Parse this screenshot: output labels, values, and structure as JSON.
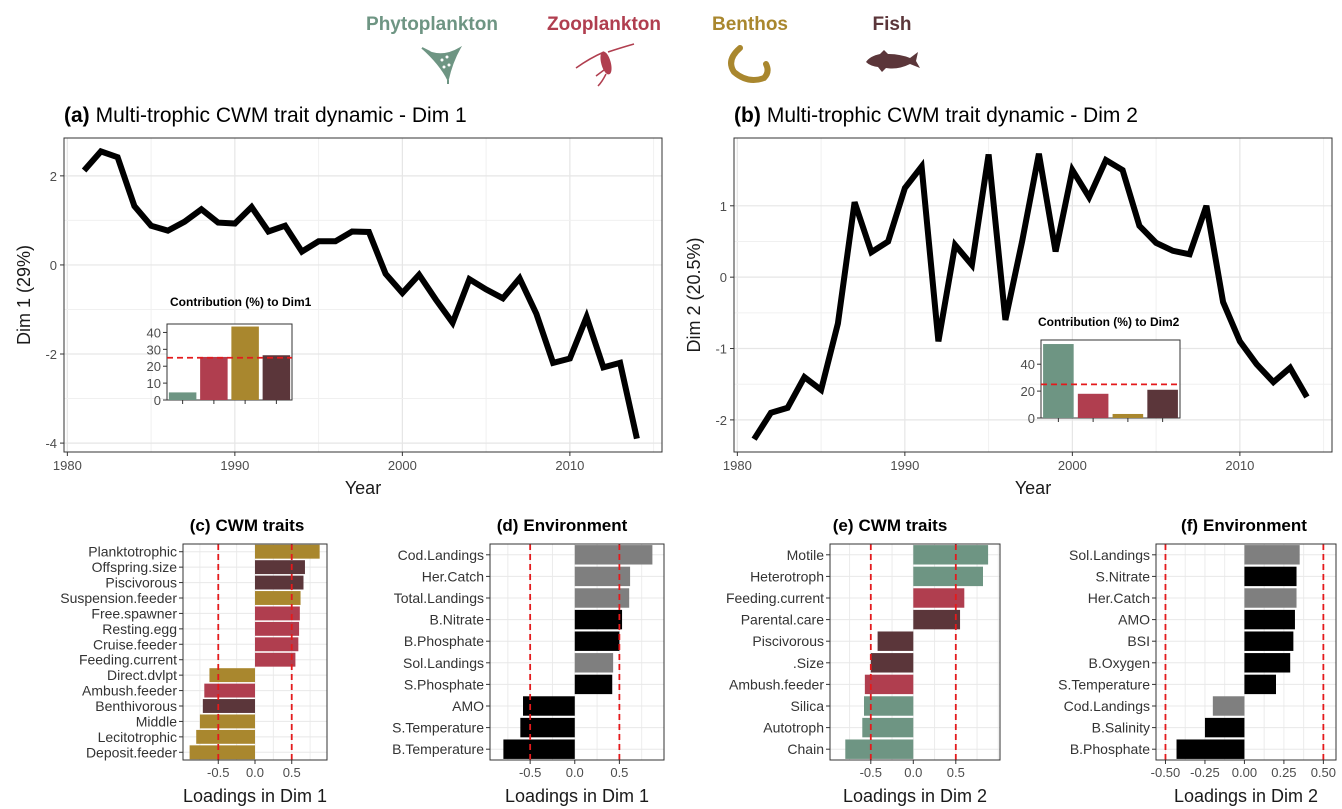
{
  "legend": {
    "groups": [
      {
        "name": "Phytoplankton",
        "color": "#6e9583",
        "icon": "phytoplankton-icon"
      },
      {
        "name": "Zooplankton",
        "color": "#b03e4f",
        "icon": "zooplankton-icon"
      },
      {
        "name": "Benthos",
        "color": "#a9872e",
        "icon": "benthos-icon"
      },
      {
        "name": "Fish",
        "color": "#5b363a",
        "icon": "fish-icon"
      }
    ]
  },
  "chart_data": [
    {
      "type": "line",
      "panel": "a",
      "title_prefix": "(a)",
      "title": "Multi-trophic CWM trait dynamic - Dim 1",
      "xlabel": "Year",
      "ylabel": "Dim 1 (29%)",
      "xlim": [
        1979.8,
        2015.5
      ],
      "ylim": [
        -4.2,
        2.85
      ],
      "xticks": [
        1980,
        1990,
        2000,
        2010
      ],
      "yticks": [
        2,
        0,
        -2,
        -4
      ],
      "grid": true,
      "x": [
        1981,
        1982,
        1983,
        1984,
        1985,
        1986,
        1987,
        1988,
        1989,
        1990,
        1991,
        1992,
        1993,
        1994,
        1995,
        1996,
        1997,
        1998,
        1999,
        2000,
        2001,
        2002,
        2003,
        2004,
        2005,
        2006,
        2007,
        2008,
        2009,
        2010,
        2011,
        2012,
        2013,
        2014
      ],
      "y": [
        2.12,
        2.55,
        2.42,
        1.32,
        0.88,
        0.77,
        0.97,
        1.25,
        0.95,
        0.93,
        1.3,
        0.75,
        0.88,
        0.3,
        0.53,
        0.53,
        0.75,
        0.74,
        -0.2,
        -0.63,
        -0.22,
        -0.78,
        -1.3,
        -0.32,
        -0.55,
        -0.75,
        -0.3,
        -1.1,
        -2.2,
        -2.1,
        -1.17,
        -2.3,
        -2.2,
        -3.9
      ],
      "inset": {
        "type": "bar",
        "title": "Contribution (%) to Dim1",
        "categories": [
          "Phytoplankton",
          "Zooplankton",
          "Benthos",
          "Fish"
        ],
        "values": [
          4.5,
          25.5,
          43.5,
          26.5
        ],
        "ylim": [
          0,
          45
        ],
        "yticks": [
          0,
          10,
          20,
          30,
          40
        ],
        "reference_line": 25,
        "reference_color": "#e41a1c"
      }
    },
    {
      "type": "line",
      "panel": "b",
      "title_prefix": "(b)",
      "title": "Multi-trophic CWM trait dynamic - Dim 2",
      "xlabel": "Year",
      "ylabel": "Dim 2 (20.5%)",
      "xlim": [
        1979.8,
        2015.5
      ],
      "ylim": [
        -2.45,
        1.95
      ],
      "xticks": [
        1980,
        1990,
        2000,
        2010
      ],
      "yticks": [
        1,
        0,
        -1,
        -2
      ],
      "grid": true,
      "x": [
        1981,
        1982,
        1983,
        1984,
        1985,
        1986,
        1987,
        1988,
        1989,
        1990,
        1991,
        1992,
        1993,
        1994,
        1995,
        1996,
        1997,
        1998,
        1999,
        2000,
        2001,
        2002,
        2003,
        2004,
        2005,
        2006,
        2007,
        2008,
        2009,
        2010,
        2011,
        2012,
        2013,
        2014
      ],
      "y": [
        -2.27,
        -1.9,
        -1.83,
        -1.4,
        -1.58,
        -0.65,
        1.05,
        0.35,
        0.5,
        1.25,
        1.55,
        -0.9,
        0.45,
        0.17,
        1.72,
        -0.6,
        0.5,
        1.73,
        0.36,
        1.5,
        1.12,
        1.64,
        1.5,
        0.72,
        0.48,
        0.37,
        0.32,
        1.0,
        -0.35,
        -0.9,
        -1.22,
        -1.47,
        -1.27,
        -1.68
      ],
      "inset": {
        "type": "bar",
        "title": "Contribution (%) to Dim2",
        "categories": [
          "Phytoplankton",
          "Zooplankton",
          "Benthos",
          "Fish"
        ],
        "values": [
          55,
          18,
          3,
          21
        ],
        "ylim": [
          0,
          58
        ],
        "yticks": [
          0,
          20,
          40
        ],
        "reference_line": 25,
        "reference_color": "#e41a1c"
      }
    },
    {
      "type": "bar",
      "orientation": "horizontal",
      "panel": "c",
      "title_prefix": "(c)",
      "title": "CWM traits",
      "xlabel": "Loadings in Dim 1",
      "xlim": [
        -0.98,
        0.98
      ],
      "xticks": [
        -0.5,
        0.0,
        0.5
      ],
      "xtick_labels": [
        "-0.5",
        "0.0",
        "0.5"
      ],
      "reference_lines": [
        -0.5,
        0.5
      ],
      "categories": [
        "Planktotrophic",
        "Offspring.size",
        "Piscivorous",
        "Suspension.feeder",
        "Free.spawner",
        "Resting.egg",
        "Cruise.feeder",
        "Feeding.current",
        "Direct.dvlpt",
        "Ambush.feeder",
        "Benthivorous",
        "Middle",
        "Lecitotrophic",
        "Deposit.feeder"
      ],
      "values": [
        0.88,
        0.68,
        0.66,
        0.62,
        0.61,
        0.6,
        0.59,
        0.55,
        -0.62,
        -0.69,
        -0.71,
        -0.75,
        -0.8,
        -0.89
      ],
      "colors": [
        "#a9872e",
        "#5b363a",
        "#5b363a",
        "#a9872e",
        "#b03e4f",
        "#b03e4f",
        "#b03e4f",
        "#b03e4f",
        "#a9872e",
        "#b03e4f",
        "#5b363a",
        "#a9872e",
        "#a9872e",
        "#a9872e"
      ]
    },
    {
      "type": "bar",
      "orientation": "horizontal",
      "panel": "d",
      "title_prefix": "(d)",
      "title": "Environment",
      "xlabel": "Loadings in Dim 1",
      "xlim": [
        -0.95,
        1.0
      ],
      "xticks": [
        -0.5,
        0.0,
        0.5
      ],
      "xtick_labels": [
        "-0.5",
        "0.0",
        "0.5"
      ],
      "reference_lines": [
        -0.5,
        0.5
      ],
      "categories": [
        "Cod.Landings",
        "Her.Catch",
        "Total.Landings",
        "B.Nitrate",
        "B.Phosphate",
        "Sol.Landings",
        "S.Phosphate",
        "AMO",
        "S.Temperature",
        "B.Temperature"
      ],
      "values": [
        0.87,
        0.62,
        0.61,
        0.53,
        0.5,
        0.43,
        0.42,
        -0.58,
        -0.61,
        -0.8
      ],
      "colors": [
        "#7f7f7f",
        "#7f7f7f",
        "#7f7f7f",
        "#000000",
        "#000000",
        "#7f7f7f",
        "#000000",
        "#000000",
        "#000000",
        "#000000"
      ]
    },
    {
      "type": "bar",
      "orientation": "horizontal",
      "panel": "e",
      "title_prefix": "(e)",
      "title": "CWM traits",
      "xlabel": "Loadings in Dim 2",
      "xlim": [
        -0.98,
        1.02
      ],
      "xticks": [
        -0.5,
        0.0,
        0.5
      ],
      "xtick_labels": [
        "-0.5",
        "0.0",
        "0.5"
      ],
      "reference_lines": [
        -0.5,
        0.5
      ],
      "categories": [
        "Motile",
        "Heterotroph",
        "Feeding.current",
        "Parental.care",
        "Piscivorous",
        ".Size",
        "Ambush.feeder",
        "Silica",
        "Autotroph",
        "Chain"
      ],
      "values": [
        0.88,
        0.82,
        0.6,
        0.55,
        -0.42,
        -0.5,
        -0.57,
        -0.58,
        -0.6,
        -0.8
      ],
      "colors": [
        "#6e9583",
        "#6e9583",
        "#b03e4f",
        "#5b363a",
        "#5b363a",
        "#5b363a",
        "#b03e4f",
        "#6e9583",
        "#6e9583",
        "#6e9583"
      ]
    },
    {
      "type": "bar",
      "orientation": "horizontal",
      "panel": "f",
      "title_prefix": "(f)",
      "title": "Environment",
      "xlabel": "Loadings in Dim 2",
      "xlim": [
        -0.56,
        0.58
      ],
      "xticks": [
        -0.5,
        -0.25,
        0.0,
        0.25,
        0.5
      ],
      "xtick_labels": [
        "-0.50",
        "-0.25",
        "0.00",
        "0.25",
        "0.50"
      ],
      "reference_lines": [
        -0.5,
        0.5
      ],
      "categories": [
        "Sol.Landings",
        "S.Nitrate",
        "Her.Catch",
        "AMO",
        "BSI",
        "B.Oxygen",
        "S.Temperature",
        "Cod.Landings",
        "B.Salinity",
        "B.Phosphate"
      ],
      "values": [
        0.35,
        0.33,
        0.33,
        0.32,
        0.31,
        0.29,
        0.2,
        -0.2,
        -0.25,
        -0.43
      ],
      "colors": [
        "#7f7f7f",
        "#000000",
        "#7f7f7f",
        "#000000",
        "#000000",
        "#000000",
        "#000000",
        "#7f7f7f",
        "#000000",
        "#000000"
      ]
    }
  ]
}
